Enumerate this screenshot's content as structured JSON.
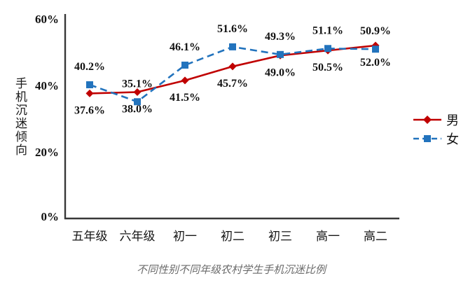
{
  "chart_data": {
    "type": "line",
    "title": "不同性别不同年级农村学生手机沉迷比例",
    "y_axis_label": "手机沉迷倾向",
    "categories": [
      "五年级",
      "六年级",
      "初一",
      "初二",
      "初三",
      "高一",
      "高二"
    ],
    "y_ticks": [
      {
        "label": "0%",
        "value": 0
      },
      {
        "label": "20%",
        "value": 20
      },
      {
        "label": "40%",
        "value": 40
      },
      {
        "label": "60%",
        "value": 60
      }
    ],
    "ylim": [
      0,
      60
    ],
    "grid": false,
    "legend_position": "right",
    "series": [
      {
        "name": "男",
        "color": "#c00000",
        "line_style": "solid",
        "marker": "diamond",
        "label_position": "below",
        "values": [
          37.6,
          38.0,
          41.5,
          45.7,
          49.0,
          50.5,
          52.0
        ],
        "labels": [
          "37.6%",
          "38.0%",
          "41.5%",
          "45.7%",
          "49.0%",
          "50.5%",
          "52.0%"
        ]
      },
      {
        "name": "女",
        "color": "#2273bd",
        "line_style": "dashed",
        "marker": "square",
        "label_position": "above",
        "values": [
          40.2,
          35.1,
          46.1,
          51.6,
          49.3,
          51.1,
          50.9
        ],
        "labels": [
          "40.2%",
          "35.1%",
          "46.1%",
          "51.6%",
          "49.3%",
          "51.1%",
          "50.9%"
        ]
      }
    ]
  }
}
